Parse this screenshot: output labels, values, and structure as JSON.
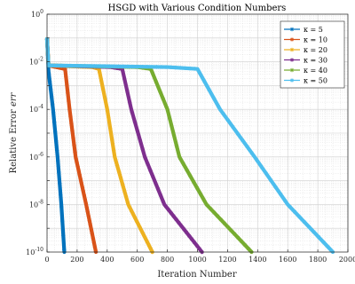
{
  "chart_data": {
    "type": "line",
    "title": "HSGD with Various Condition Numbers",
    "xlabel": "Iteration Number",
    "ylabel": "Relative Error err",
    "ylabel_parts": {
      "text": "Relative Error ",
      "var": "err"
    },
    "xlim": [
      0,
      2000
    ],
    "ylim": [
      1e-10,
      1
    ],
    "yscale": "log",
    "grid": true,
    "minor_grid": true,
    "legend_position": "top-right",
    "x_ticks": [
      0,
      200,
      400,
      600,
      800,
      1000,
      1200,
      1400,
      1600,
      1800,
      2000
    ],
    "y_tick_exponents": [
      0,
      -2,
      -4,
      -6,
      -8,
      -10
    ],
    "series": [
      {
        "name": "κ = 5",
        "color": "#0072BD",
        "marker": "star",
        "points": [
          [
            0,
            0.09
          ],
          [
            10,
            0.004
          ],
          [
            40,
            0.0001
          ],
          [
            70,
            1e-06
          ],
          [
            95,
            1e-08
          ],
          [
            115,
            1e-10
          ]
        ]
      },
      {
        "name": "κ = 10",
        "color": "#D95319",
        "marker": "star",
        "points": [
          [
            0,
            0.09
          ],
          [
            10,
            0.007
          ],
          [
            60,
            0.006
          ],
          [
            120,
            0.005
          ],
          [
            150,
            0.0001
          ],
          [
            190,
            1e-06
          ],
          [
            260,
            1e-08
          ],
          [
            325,
            1e-10
          ]
        ]
      },
      {
        "name": "κ = 20",
        "color": "#EDB120",
        "marker": "star",
        "points": [
          [
            0,
            0.09
          ],
          [
            10,
            0.007
          ],
          [
            300,
            0.006
          ],
          [
            345,
            0.005
          ],
          [
            400,
            0.0001
          ],
          [
            450,
            1e-06
          ],
          [
            540,
            1e-08
          ],
          [
            700,
            1e-10
          ]
        ]
      },
      {
        "name": "κ = 30",
        "color": "#7E2F8E",
        "marker": "star",
        "points": [
          [
            0,
            0.09
          ],
          [
            10,
            0.007
          ],
          [
            420,
            0.006
          ],
          [
            500,
            0.005
          ],
          [
            560,
            0.0001
          ],
          [
            650,
            1e-06
          ],
          [
            780,
            1e-08
          ],
          [
            1030,
            1e-10
          ]
        ]
      },
      {
        "name": "κ = 40",
        "color": "#77AC30",
        "marker": "star",
        "points": [
          [
            0,
            0.09
          ],
          [
            10,
            0.007
          ],
          [
            600,
            0.006
          ],
          [
            690,
            0.005
          ],
          [
            800,
            0.0001
          ],
          [
            880,
            1e-06
          ],
          [
            1060,
            1e-08
          ],
          [
            1360,
            1e-10
          ]
        ]
      },
      {
        "name": "κ = 50",
        "color": "#4DBEEE",
        "marker": "star",
        "points": [
          [
            0,
            0.09
          ],
          [
            10,
            0.007
          ],
          [
            800,
            0.006
          ],
          [
            1000,
            0.005
          ],
          [
            1150,
            0.0001
          ],
          [
            1380,
            1e-06
          ],
          [
            1600,
            1e-08
          ],
          [
            1900,
            1e-10
          ]
        ]
      }
    ]
  }
}
